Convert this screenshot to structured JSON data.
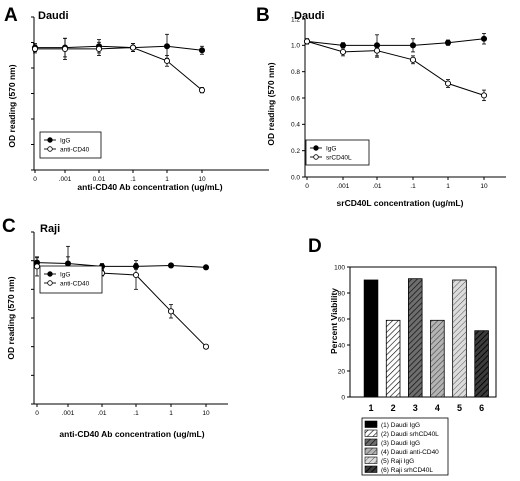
{
  "chart_data": [
    {
      "panel": "A",
      "title": "Daudi",
      "type": "line",
      "x": [
        "0",
        ".001",
        "0.01",
        ".1",
        "1",
        "10"
      ],
      "xlabel": "anti-CD40 Ab concentration (ug/mL)",
      "ylabel": "OD reading (570 nm)",
      "yticks": [],
      "ylim": [
        0,
        1.15
      ],
      "legend_position": "bottom-left",
      "series": [
        {
          "name": "IgG",
          "filled": true,
          "values": [
            0.92,
            0.92,
            0.93,
            0.92,
            0.93,
            0.9
          ],
          "err": [
            0.03,
            0.07,
            0.05,
            0.03,
            0.09,
            0.03
          ]
        },
        {
          "name": "anti-CD40",
          "filled": false,
          "values": [
            0.91,
            0.91,
            0.91,
            0.92,
            0.82,
            0.6
          ],
          "err": [
            0.03,
            0.08,
            0.05,
            0.03,
            0.04,
            0.02
          ]
        }
      ]
    },
    {
      "panel": "B",
      "title": "Daudi",
      "type": "line",
      "x": [
        "0",
        ".001",
        ".01",
        ".1",
        "1",
        "10"
      ],
      "xlabel": "srCD40L concentration (ug/mL)",
      "ylabel": "OD reading (570 nm)",
      "yticks": [
        "0.0",
        "0.2",
        "0.4",
        "0.6",
        "0.8",
        "1.0",
        "1.2"
      ],
      "ylim": [
        0,
        1.2
      ],
      "legend_position": "bottom-left",
      "series": [
        {
          "name": "IgG",
          "filled": true,
          "values": [
            1.03,
            1.0,
            1.0,
            1.0,
            1.02,
            1.05
          ],
          "err": [
            0.02,
            0.02,
            0.08,
            0.05,
            0.02,
            0.04
          ]
        },
        {
          "name": "srCD40L",
          "filled": false,
          "values": [
            1.03,
            0.95,
            0.96,
            0.89,
            0.71,
            0.62
          ],
          "err": [
            0.02,
            0.03,
            0.05,
            0.03,
            0.03,
            0.04
          ]
        }
      ]
    },
    {
      "panel": "C",
      "title": "Raji",
      "type": "line",
      "x": [
        "0",
        ".001",
        ".01",
        ".1",
        "1",
        "10"
      ],
      "xlabel": "anti-CD40 Ab concentration (ug/mL)",
      "ylabel": "OD reading (570 nm)",
      "yticks": [],
      "ylim": [
        0,
        1.8
      ],
      "legend_position": "top-left",
      "series": [
        {
          "name": "IgG",
          "filled": true,
          "values": [
            1.48,
            1.47,
            1.44,
            1.44,
            1.45,
            1.43
          ],
          "err": [
            0.05,
            0.18,
            0.03,
            0.03,
            0.02,
            0.02
          ]
        },
        {
          "name": "anti-CD40",
          "filled": false,
          "values": [
            1.44,
            1.4,
            1.37,
            1.35,
            0.97,
            0.6
          ],
          "err": [
            0.1,
            0.14,
            0.03,
            0.15,
            0.07,
            0.02
          ]
        }
      ]
    },
    {
      "panel": "D",
      "type": "bar",
      "categories": [
        "1",
        "2",
        "3",
        "4",
        "5",
        "6"
      ],
      "values": [
        90,
        59,
        91,
        59,
        90,
        51
      ],
      "ylabel": "Percent Viability",
      "yticks": [
        "0",
        "20",
        "40",
        "60",
        "80",
        "100"
      ],
      "ylim": [
        0,
        100
      ],
      "legend_position": "bottom",
      "legend": [
        "(1) Daudi IgG",
        "(2) Daudi srhCD40L",
        "(3) Daudi IgG",
        "(4) Daudi anti-CD40",
        "(5) Raji IgG",
        "(6) Raji srhCD40L"
      ],
      "fills": [
        "solid-black",
        "hatch-white",
        "hatch-dark",
        "hatch-gray",
        "hatch-light",
        "hatch-darkest"
      ]
    }
  ]
}
